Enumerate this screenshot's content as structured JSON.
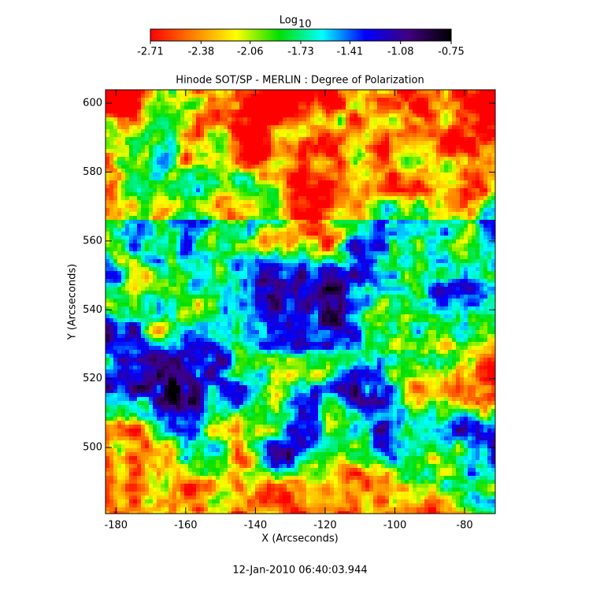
{
  "chart_data": {
    "type": "image",
    "title": "Hinode SOT/SP - MERLIN : Degree of Polarization",
    "x_label": "X (Arcseconds)",
    "y_label": "Y (Arcseconds)",
    "timestamp": "12-Jan-2010 06:40:03.944",
    "xlim": [
      -183,
      -71.2
    ],
    "xticks": [
      -180,
      -160,
      -140,
      -120,
      -100,
      -80
    ],
    "ylim": [
      480.8,
      603.9
    ],
    "yticks": [
      500,
      520,
      540,
      560,
      580,
      600
    ],
    "colorbar_label": "Log",
    "colorbar_label_sub": "10",
    "colorbar_lim": [
      -2.71,
      -0.75
    ],
    "colorbar_ticks": [
      -2.71,
      -2.38,
      -2.06,
      -1.73,
      -1.41,
      -1.08,
      -0.75
    ],
    "colormap": [
      "#ff0000",
      "#ff8000",
      "#ffff00",
      "#00e000",
      "#00ffff",
      "#0000ff",
      "#400080",
      "#000000"
    ]
  }
}
